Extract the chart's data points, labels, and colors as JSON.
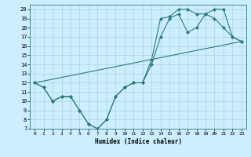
{
  "xlabel": "Humidex (Indice chaleur)",
  "bg_color": "#cceeff",
  "line_color": "#2d7a7a",
  "xlim": [
    -0.5,
    23.5
  ],
  "ylim": [
    7,
    20.5
  ],
  "xticks": [
    0,
    1,
    2,
    3,
    4,
    5,
    6,
    7,
    8,
    9,
    10,
    11,
    12,
    13,
    14,
    15,
    16,
    17,
    18,
    19,
    20,
    21,
    22,
    23
  ],
  "yticks": [
    7,
    8,
    9,
    10,
    11,
    12,
    13,
    14,
    15,
    16,
    17,
    18,
    19,
    20
  ],
  "series1_x": [
    0,
    1,
    2,
    3,
    4,
    5,
    6,
    7,
    8,
    9,
    10,
    11,
    12,
    13,
    14,
    15,
    16,
    17,
    18,
    19,
    20,
    21,
    22,
    23
  ],
  "series1_y": [
    12,
    11.5,
    10,
    10.5,
    10.5,
    9,
    7.5,
    7,
    8,
    10.5,
    11.5,
    12,
    12,
    14,
    17,
    19,
    19.5,
    17.5,
    18,
    19.5,
    20,
    20,
    17,
    16.5
  ],
  "series2_x": [
    0,
    1,
    2,
    3,
    4,
    5,
    6,
    7,
    8,
    9,
    10,
    11,
    12,
    13,
    14,
    15,
    16,
    17,
    18,
    19,
    20,
    21,
    22,
    23
  ],
  "series2_y": [
    12,
    11.5,
    10,
    10.5,
    10.5,
    9,
    7.5,
    7,
    8,
    10.5,
    11.5,
    12,
    12,
    14.5,
    19,
    19.2,
    20,
    20,
    19.5,
    19.5,
    19,
    18,
    17,
    16.5
  ],
  "series3_x": [
    0,
    23
  ],
  "series3_y": [
    12,
    16.5
  ]
}
